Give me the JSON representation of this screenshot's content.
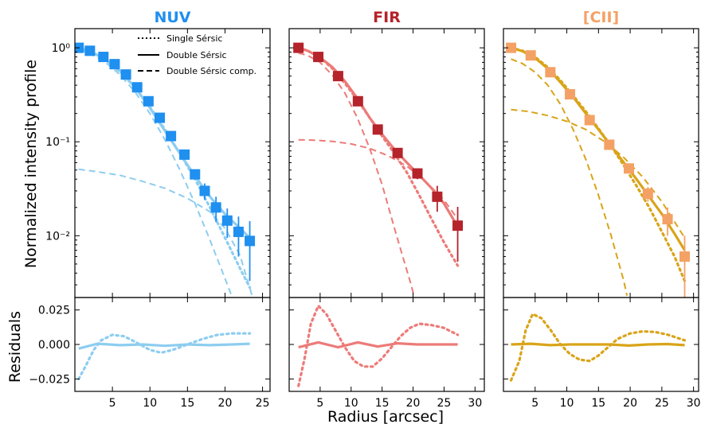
{
  "figure": {
    "xlabel": "Radius [arcsec]",
    "ylabel_top": "Normalized intensity profile",
    "ylabel_bottom": "Residuals"
  },
  "legend": {
    "entries": [
      {
        "label": "Single Sérsic",
        "style": "dotted"
      },
      {
        "label": "Double Sérsic",
        "style": "solid"
      },
      {
        "label": "Double Sérsic comp.",
        "style": "dashed"
      }
    ],
    "placement": "top-right of NUV panel"
  },
  "chart_data": [
    {
      "type": "scatter",
      "title": "NUV",
      "title_color": "#1f8ff0",
      "marker_color": "#1f8ff0",
      "model_color": "#8dcdf0",
      "xlim": [
        0,
        26
      ],
      "xticks": [
        5,
        10,
        15,
        20,
        25
      ],
      "yscale": "log",
      "ylim": [
        0.0022,
        1.6
      ],
      "yticks": [
        {
          "v": 1,
          "label": "10⁰"
        },
        {
          "v": 0.1,
          "label": "10⁻¹"
        },
        {
          "v": 0.01,
          "label": "10⁻²"
        }
      ],
      "points": {
        "x": [
          0.5,
          2.0,
          3.8,
          5.3,
          6.8,
          8.3,
          9.8,
          11.3,
          12.8,
          14.6,
          16.0,
          17.3,
          18.8,
          20.3,
          21.8,
          23.3
        ],
        "y": [
          1.0,
          0.93,
          0.8,
          0.67,
          0.52,
          0.38,
          0.27,
          0.18,
          0.115,
          0.073,
          0.045,
          0.03,
          0.02,
          0.0145,
          0.011,
          0.0088
        ],
        "err": [
          0,
          0,
          0,
          0,
          0,
          0,
          0,
          0,
          0,
          0.006,
          0.005,
          0.006,
          0.006,
          0.005,
          0.005,
          0.0055
        ]
      },
      "double_sersic": {
        "x": [
          0.5,
          2,
          4,
          6,
          8,
          10,
          12,
          14,
          16,
          18,
          20,
          22,
          23.3
        ],
        "y": [
          1.0,
          0.92,
          0.76,
          0.57,
          0.38,
          0.23,
          0.13,
          0.075,
          0.043,
          0.026,
          0.017,
          0.012,
          0.0095
        ]
      },
      "single_sersic": {
        "x": [
          0.5,
          2,
          4,
          6,
          8,
          10,
          12,
          14,
          16,
          18,
          20,
          22,
          23.3
        ],
        "y": [
          1.0,
          0.92,
          0.76,
          0.56,
          0.38,
          0.235,
          0.135,
          0.075,
          0.04,
          0.02,
          0.0095,
          0.0045,
          0.0028
        ]
      },
      "components": [
        {
          "x": [
            0.5,
            2,
            4,
            6,
            8,
            10,
            12,
            14,
            16,
            18,
            20,
            21.5,
            22.5,
            23.3
          ],
          "y": [
            0.95,
            0.87,
            0.71,
            0.52,
            0.34,
            0.2,
            0.105,
            0.05,
            0.022,
            0.009,
            0.0035,
            0.0017,
            0.001,
            0.0006
          ]
        },
        {
          "x": [
            0.5,
            3,
            6,
            9,
            12,
            15,
            18,
            20,
            22,
            24
          ],
          "y": [
            0.051,
            0.048,
            0.044,
            0.038,
            0.032,
            0.025,
            0.018,
            0.012,
            0.0062,
            0.0018
          ]
        }
      ],
      "residuals": {
        "ylim": [
          -0.034,
          0.034
        ],
        "yticks": [
          {
            "v": 0.025,
            "label": "0.025"
          },
          {
            "v": 0,
            "label": "0.000"
          },
          {
            "v": -0.025,
            "label": "−0.025"
          }
        ],
        "double_sersic": {
          "x": [
            0.5,
            3,
            6,
            9,
            12,
            15,
            18,
            21,
            23.3
          ],
          "y": [
            -0.003,
            0.0005,
            -0.0005,
            0.0,
            -0.001,
            0.0,
            -0.0005,
            0.0,
            0.0005
          ]
        },
        "single_sersic": {
          "x": [
            0.5,
            1.5,
            2.5,
            3.5,
            5,
            6.5,
            8,
            10,
            11.5,
            13,
            15,
            17,
            19,
            21,
            23.3
          ],
          "y": [
            -0.025,
            -0.015,
            -0.004,
            0.003,
            0.007,
            0.006,
            0.002,
            -0.004,
            -0.006,
            -0.004,
            0.0,
            0.004,
            0.007,
            0.008,
            0.008
          ]
        }
      }
    },
    {
      "type": "scatter",
      "title": "FIR",
      "title_color": "#b5232b",
      "marker_color": "#b5232b",
      "model_color": "#ec7b78",
      "xlim": [
        0,
        31.5
      ],
      "xticks": [
        5,
        10,
        15,
        20,
        25,
        30
      ],
      "yscale": "log",
      "ylim": [
        0.0022,
        1.6
      ],
      "points": {
        "x": [
          1.5,
          4.7,
          7.9,
          11.1,
          14.3,
          17.5,
          20.7,
          23.9,
          27.2
        ],
        "y": [
          1.0,
          0.8,
          0.5,
          0.27,
          0.135,
          0.076,
          0.046,
          0.026,
          0.0128
        ],
        "err": [
          0,
          0,
          0,
          0,
          0,
          0,
          0.006,
          0.008,
          0.0075
        ]
      },
      "double_sersic": {
        "x": [
          1.5,
          3,
          5,
          7,
          9,
          11,
          13,
          15,
          17,
          19,
          21,
          23,
          25,
          27.2
        ],
        "y": [
          1.0,
          0.93,
          0.79,
          0.62,
          0.44,
          0.29,
          0.18,
          0.12,
          0.083,
          0.06,
          0.044,
          0.032,
          0.022,
          0.0125
        ]
      },
      "single_sersic": {
        "x": [
          1.5,
          3,
          5,
          7,
          9,
          11,
          13,
          15,
          17,
          19,
          21,
          23,
          25,
          27.2
        ],
        "y": [
          1.0,
          0.93,
          0.79,
          0.6,
          0.42,
          0.28,
          0.18,
          0.115,
          0.075,
          0.047,
          0.027,
          0.015,
          0.0085,
          0.0048
        ]
      },
      "components": [
        {
          "x": [
            1.5,
            3,
            5,
            7,
            9,
            11,
            13,
            15,
            17,
            18.5,
            19.5,
            20.5
          ],
          "y": [
            0.88,
            0.83,
            0.7,
            0.51,
            0.33,
            0.18,
            0.085,
            0.035,
            0.012,
            0.0055,
            0.0033,
            0.0019
          ]
        },
        {
          "x": [
            1.5,
            4,
            7,
            10,
            13,
            16,
            19,
            22,
            25,
            27.2
          ],
          "y": [
            0.105,
            0.104,
            0.101,
            0.095,
            0.085,
            0.071,
            0.055,
            0.038,
            0.024,
            0.015
          ]
        }
      ],
      "residuals": {
        "double_sersic": {
          "x": [
            1.5,
            4.7,
            7.9,
            11.1,
            14.3,
            17.5,
            20.7,
            23.9,
            27.2
          ],
          "y": [
            -0.002,
            0.0015,
            -0.002,
            0.0015,
            -0.0015,
            0.0008,
            0.0,
            0.0,
            0.0
          ]
        },
        "single_sersic": {
          "x": [
            1.5,
            2.5,
            3.5,
            4.7,
            6,
            7.5,
            9,
            10.5,
            12,
            13.5,
            15,
            16.5,
            18,
            19.5,
            21,
            23,
            25,
            27.2
          ],
          "y": [
            -0.03,
            -0.01,
            0.015,
            0.028,
            0.022,
            0.01,
            -0.002,
            -0.012,
            -0.016,
            -0.016,
            -0.01,
            -0.002,
            0.006,
            0.012,
            0.015,
            0.014,
            0.012,
            0.007
          ]
        }
      }
    },
    {
      "type": "scatter",
      "title": "[CII]",
      "title_color": "#f4a165",
      "marker_color": "#f4a165",
      "model_color": "#d9a419",
      "xlim": [
        0,
        30.8
      ],
      "xticks": [
        5,
        10,
        15,
        20,
        25,
        30
      ],
      "yscale": "log",
      "ylim": [
        0.0022,
        1.6
      ],
      "points": {
        "x": [
          1.2,
          4.3,
          7.4,
          10.5,
          13.6,
          16.7,
          19.8,
          22.8,
          25.9,
          28.6
        ],
        "y": [
          1.0,
          0.83,
          0.55,
          0.32,
          0.17,
          0.093,
          0.052,
          0.028,
          0.015,
          0.006
        ],
        "err": [
          0,
          0,
          0,
          0,
          0,
          0,
          0,
          0.005,
          0.005,
          0.004
        ]
      },
      "double_sersic": {
        "x": [
          1.2,
          3,
          5,
          7,
          9,
          11,
          13,
          15,
          17,
          19,
          21,
          23,
          25,
          27,
          28.6
        ],
        "y": [
          1.0,
          0.92,
          0.78,
          0.6,
          0.43,
          0.3,
          0.2,
          0.135,
          0.09,
          0.06,
          0.04,
          0.026,
          0.017,
          0.0105,
          0.007
        ]
      },
      "single_sersic": {
        "x": [
          1.2,
          3,
          5,
          7,
          9,
          11,
          13,
          15,
          17,
          19,
          21,
          23,
          25,
          27,
          28.6
        ],
        "y": [
          1.0,
          0.93,
          0.8,
          0.62,
          0.45,
          0.31,
          0.21,
          0.138,
          0.09,
          0.056,
          0.034,
          0.02,
          0.011,
          0.006,
          0.0033
        ]
      },
      "components": [
        {
          "x": [
            1.2,
            3,
            5,
            7,
            9,
            11,
            13,
            15,
            17,
            19,
            19.5
          ],
          "y": [
            0.76,
            0.68,
            0.55,
            0.4,
            0.25,
            0.135,
            0.065,
            0.027,
            0.01,
            0.0033,
            0.0023
          ]
        },
        {
          "x": [
            1.2,
            4,
            7,
            10,
            13,
            16,
            19,
            22,
            25,
            28.6
          ],
          "y": [
            0.22,
            0.21,
            0.19,
            0.165,
            0.135,
            0.1,
            0.068,
            0.042,
            0.023,
            0.0095
          ]
        }
      ],
      "residuals": {
        "double_sersic": {
          "x": [
            1.2,
            4.3,
            7.4,
            10.5,
            13.6,
            16.7,
            19.8,
            22.8,
            25.9,
            28.6
          ],
          "y": [
            0.0,
            0.0005,
            -0.0005,
            0.0,
            0.0,
            0.0,
            -0.0008,
            0.0,
            0.0003,
            -0.0005
          ]
        },
        "single_sersic": {
          "x": [
            1.2,
            2.5,
            3.5,
            4.6,
            6,
            7.5,
            9,
            10.5,
            12,
            13.6,
            15,
            16.5,
            18,
            20,
            22,
            24,
            26,
            28.6
          ],
          "y": [
            -0.026,
            -0.012,
            0.01,
            0.022,
            0.019,
            0.01,
            0.0,
            -0.007,
            -0.011,
            -0.012,
            -0.008,
            -0.002,
            0.004,
            0.008,
            0.0095,
            0.009,
            0.007,
            0.003
          ]
        }
      }
    }
  ]
}
